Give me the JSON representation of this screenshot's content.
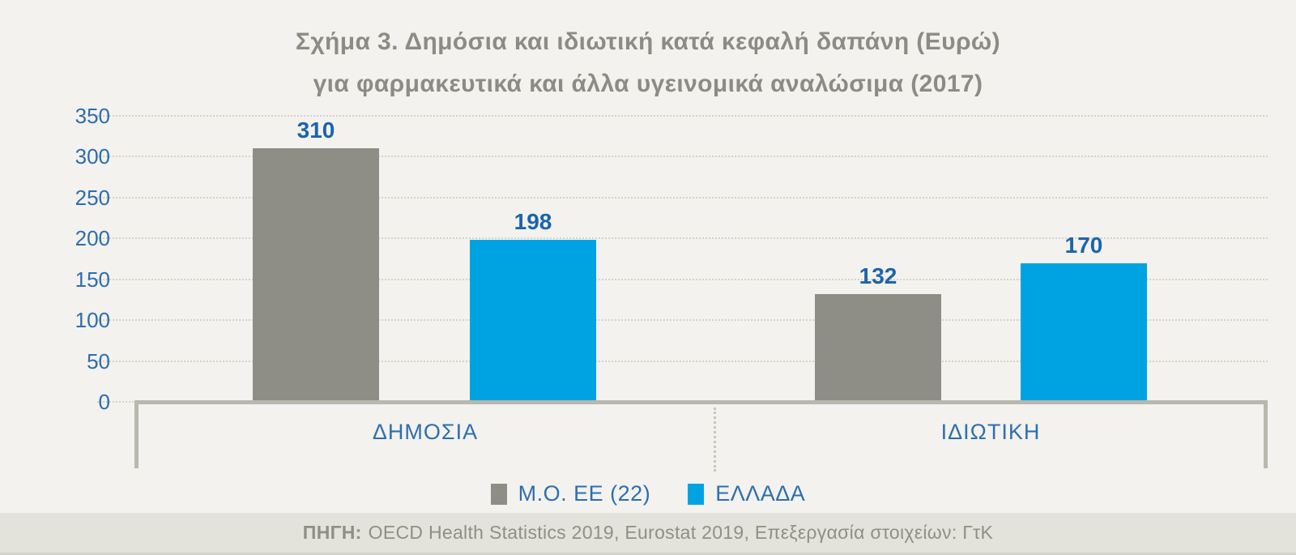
{
  "title": {
    "line1": "Σχήμα 3. Δημόσια και ιδιωτική κατά κεφαλή δαπάνη (Ευρώ)",
    "line2": "για φαρμακευτικά και άλλα υγεινομικά αναλώσιμα (2017)"
  },
  "chart_data": {
    "type": "bar",
    "categories": [
      "ΔΗΜΟΣΙΑ",
      "ΙΔΙΩΤΙΚΗ"
    ],
    "series": [
      {
        "name": "Μ.Ο. ΕΕ (22)",
        "color": "#8e8e86",
        "values": [
          310,
          132
        ]
      },
      {
        "name": "ΕΛΛΑΔΑ",
        "color": "#00a3e2",
        "values": [
          198,
          170
        ]
      }
    ],
    "title": "Σχήμα 3. Δημόσια και ιδιωτική κατά κεφαλή δαπάνη (Ευρώ) για φαρμακευτικά και άλλα υγεινομικά αναλώσιμα (2017)",
    "xlabel": "",
    "ylabel": "",
    "ylim": [
      0,
      350
    ],
    "yticks": [
      0,
      50,
      100,
      150,
      200,
      250,
      300,
      350
    ],
    "grid": "horizontal-dotted",
    "legend_position": "bottom",
    "value_labels": true
  },
  "colors": {
    "background": "#f3f2ee",
    "series_gray": "#8e8e86",
    "series_blue": "#00a3e2",
    "axis": "#b9b8ae",
    "gridline": "#d3d3c7",
    "title_text": "#8c8c85",
    "blue_text": "#2e6fad",
    "value_text": "#1c64ab",
    "footer_bg": "#e3e3dc",
    "footer_text": "#8f8f84"
  },
  "footer": {
    "source_label": "ΠΗΓΗ:",
    "source_text": "OECD Health Statistics 2019, Eurostat 2019, Επεξεργασία στοιχείων: ΓτΚ"
  }
}
